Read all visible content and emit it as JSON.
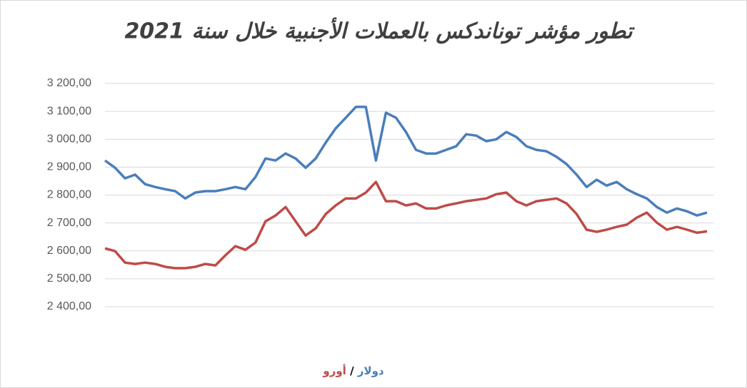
{
  "chart_data": {
    "type": "line",
    "title": "تطور مؤشر توناندكس بالعملات الأجنبية خلال سنة 2021",
    "ylim": [
      2400,
      3200
    ],
    "yticks": [
      {
        "value": 2400,
        "label": "2 400,00"
      },
      {
        "value": 2500,
        "label": "2 500,00"
      },
      {
        "value": 2600,
        "label": "2 600,00"
      },
      {
        "value": 2700,
        "label": "2 700,00"
      },
      {
        "value": 2800,
        "label": "2 800,00"
      },
      {
        "value": 2900,
        "label": "2 900,00"
      },
      {
        "value": 3000,
        "label": "3 000,00"
      },
      {
        "value": 3100,
        "label": "3 100,00"
      },
      {
        "value": 3200,
        "label": "3 200,00"
      }
    ],
    "grid": true,
    "legend_separator": "/",
    "series": [
      {
        "name": "دولار",
        "color": "#4a7ebb",
        "values": [
          2924,
          2898,
          2860,
          2873,
          2839,
          2829,
          2821,
          2814,
          2788,
          2809,
          2814,
          2814,
          2821,
          2829,
          2821,
          2865,
          2931,
          2924,
          2949,
          2931,
          2898,
          2931,
          2988,
          3039,
          3077,
          3116,
          3116,
          2924,
          3095,
          3077,
          3026,
          2962,
          2949,
          2949,
          2962,
          2975,
          3018,
          3013,
          2993,
          3000,
          3026,
          3008,
          2975,
          2962,
          2957,
          2937,
          2911,
          2873,
          2829,
          2855,
          2834,
          2847,
          2821,
          2803,
          2788,
          2757,
          2737,
          2752,
          2742,
          2727,
          2737
        ]
      },
      {
        "name": "أورو",
        "color": "#be4b48",
        "values": [
          2609,
          2599,
          2558,
          2553,
          2558,
          2553,
          2543,
          2538,
          2538,
          2543,
          2553,
          2548,
          2584,
          2617,
          2604,
          2630,
          2706,
          2727,
          2757,
          2706,
          2655,
          2681,
          2732,
          2763,
          2788,
          2788,
          2809,
          2847,
          2778,
          2778,
          2763,
          2770,
          2752,
          2752,
          2763,
          2770,
          2778,
          2783,
          2788,
          2803,
          2809,
          2778,
          2763,
          2778,
          2783,
          2788,
          2770,
          2732,
          2676,
          2668,
          2676,
          2686,
          2694,
          2719,
          2737,
          2701,
          2676,
          2686,
          2676,
          2665,
          2670
        ]
      }
    ]
  }
}
